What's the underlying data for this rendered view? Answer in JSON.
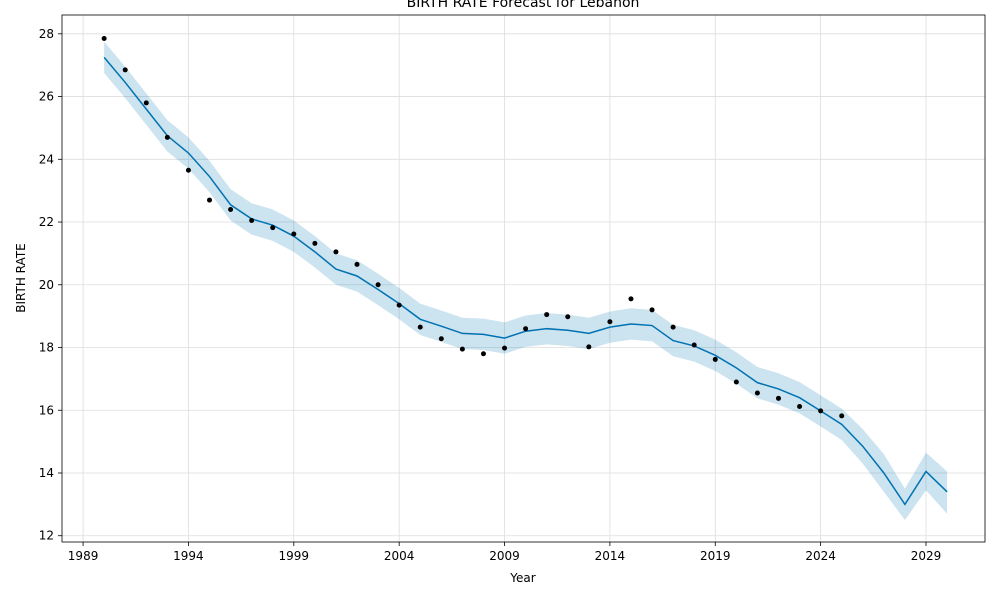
{
  "chart_data": {
    "type": "line",
    "title": "BIRTH RATE Forecast for Lebanon",
    "xlabel": "Year",
    "ylabel": "BIRTH RATE",
    "xlim": [
      1988,
      2031.8
    ],
    "ylim": [
      11.8,
      28.6
    ],
    "x_ticks": [
      1989,
      1994,
      1999,
      2004,
      2009,
      2014,
      2019,
      2024,
      2029
    ],
    "y_ticks": [
      12,
      14,
      16,
      18,
      20,
      22,
      24,
      26,
      28
    ],
    "grid": true,
    "colors": {
      "forecast_line": "#0072B2",
      "interval_fill": "#0072B2",
      "observed_points": "#000000",
      "grid": "#dddddd"
    },
    "series": [
      {
        "kind": "observed_points",
        "x": [
          1990,
          1991,
          1992,
          1993,
          1994,
          1995,
          1996,
          1997,
          1998,
          1999,
          2000,
          2001,
          2002,
          2003,
          2004,
          2005,
          2006,
          2007,
          2008,
          2009,
          2010,
          2011,
          2012,
          2013,
          2014,
          2015,
          2016,
          2017,
          2018,
          2019,
          2020,
          2021,
          2022,
          2023,
          2024,
          2025
        ],
        "y": [
          27.85,
          26.85,
          25.8,
          24.7,
          23.65,
          22.7,
          22.4,
          22.05,
          21.82,
          21.62,
          21.32,
          21.05,
          20.65,
          20.0,
          19.35,
          18.65,
          18.28,
          17.95,
          17.8,
          17.98,
          18.6,
          19.05,
          18.98,
          18.02,
          18.82,
          19.55,
          19.2,
          18.65,
          18.08,
          17.62,
          16.9,
          16.55,
          16.38,
          16.12,
          15.98,
          15.82
        ]
      },
      {
        "kind": "forecast_line",
        "x": [
          1990,
          1991,
          1992,
          1993,
          1994,
          1995,
          1996,
          1997,
          1998,
          1999,
          2000,
          2001,
          2002,
          2003,
          2004,
          2005,
          2006,
          2007,
          2008,
          2009,
          2010,
          2011,
          2012,
          2013,
          2014,
          2015,
          2016,
          2017,
          2018,
          2019,
          2020,
          2021,
          2022,
          2023,
          2024,
          2025,
          2026,
          2027,
          2028,
          2029,
          2030
        ],
        "y": [
          27.25,
          26.45,
          25.6,
          24.75,
          24.2,
          23.45,
          22.55,
          22.1,
          21.9,
          21.55,
          21.05,
          20.5,
          20.28,
          19.85,
          19.4,
          18.9,
          18.68,
          18.45,
          18.42,
          18.3,
          18.52,
          18.6,
          18.55,
          18.45,
          18.65,
          18.75,
          18.7,
          18.22,
          18.05,
          17.75,
          17.35,
          16.88,
          16.68,
          16.4,
          15.98,
          15.55,
          14.85,
          14.0,
          13.0,
          14.05,
          13.4
        ]
      },
      {
        "kind": "interval_lower",
        "x": [
          1990,
          1991,
          1992,
          1993,
          1994,
          1995,
          1996,
          1997,
          1998,
          1999,
          2000,
          2001,
          2002,
          2003,
          2004,
          2005,
          2006,
          2007,
          2008,
          2009,
          2010,
          2011,
          2012,
          2013,
          2014,
          2015,
          2016,
          2017,
          2018,
          2019,
          2020,
          2021,
          2022,
          2023,
          2024,
          2025,
          2026,
          2027,
          2028,
          2029,
          2030
        ],
        "y": [
          26.75,
          25.95,
          25.1,
          24.25,
          23.7,
          22.95,
          22.05,
          21.6,
          21.4,
          21.05,
          20.55,
          20.0,
          19.78,
          19.35,
          18.9,
          18.4,
          18.18,
          17.95,
          17.92,
          17.8,
          18.02,
          18.1,
          18.05,
          17.95,
          18.15,
          18.25,
          18.2,
          17.72,
          17.55,
          17.25,
          16.85,
          16.38,
          16.18,
          15.9,
          15.48,
          15.05,
          14.3,
          13.4,
          12.5,
          13.45,
          12.7
        ]
      },
      {
        "kind": "interval_upper",
        "x": [
          1990,
          1991,
          1992,
          1993,
          1994,
          1995,
          1996,
          1997,
          1998,
          1999,
          2000,
          2001,
          2002,
          2003,
          2004,
          2005,
          2006,
          2007,
          2008,
          2009,
          2010,
          2011,
          2012,
          2013,
          2014,
          2015,
          2016,
          2017,
          2018,
          2019,
          2020,
          2021,
          2022,
          2023,
          2024,
          2025,
          2026,
          2027,
          2028,
          2029,
          2030
        ],
        "y": [
          27.75,
          26.95,
          26.1,
          25.25,
          24.7,
          23.95,
          23.05,
          22.6,
          22.4,
          22.05,
          21.55,
          21.0,
          20.78,
          20.35,
          19.9,
          19.4,
          19.18,
          18.95,
          18.92,
          18.8,
          19.02,
          19.1,
          19.05,
          18.95,
          19.15,
          19.25,
          19.2,
          18.72,
          18.55,
          18.25,
          17.85,
          17.38,
          17.18,
          16.9,
          16.48,
          16.05,
          15.4,
          14.6,
          13.5,
          14.65,
          14.05
        ]
      }
    ]
  }
}
